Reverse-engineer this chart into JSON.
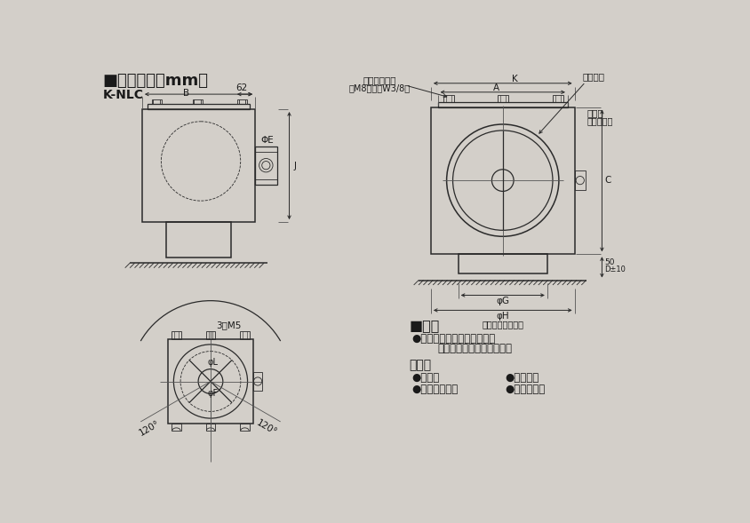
{
  "bg_color": "#d3cfc9",
  "line_color": "#2a2a2a",
  "title": "■外形寸法（mm）",
  "model": "K-NLC",
  "spec_title": "■仕様",
  "spec_material_label": "●材質：溶融亜鉛メッキ鋼板",
  "spec_material_sub": "（内面、外面断熱材貼付）",
  "accessory_title": "付属品",
  "accessory_items": [
    "●取付板",
    "●ゴムワッシャ",
    "●取付ねじ",
    "●据付説明書"
  ],
  "label_B": "B",
  "label_62": "62",
  "label_phiE": "ΦE",
  "label_J": "J",
  "label_3M5": "3－M5",
  "label_phiL": "φL",
  "label_phiF": "φF",
  "label_120_left": "120°",
  "label_120_right": "120°",
  "label_damper": "ダンパー",
  "label_bolt": "吊ボルト位置",
  "label_bolt_sub": "（M8またはW3/8）",
  "label_K": "K",
  "label_A": "A",
  "label_C": "C",
  "label_D10": "D±10",
  "label_50": "50",
  "label_phiG": "φG",
  "label_phiH": "φH",
  "label_ceiling": "（天井開口寸法）",
  "label_torifuri": "取付板",
  "label_torifuri_sub": "（付属品）"
}
